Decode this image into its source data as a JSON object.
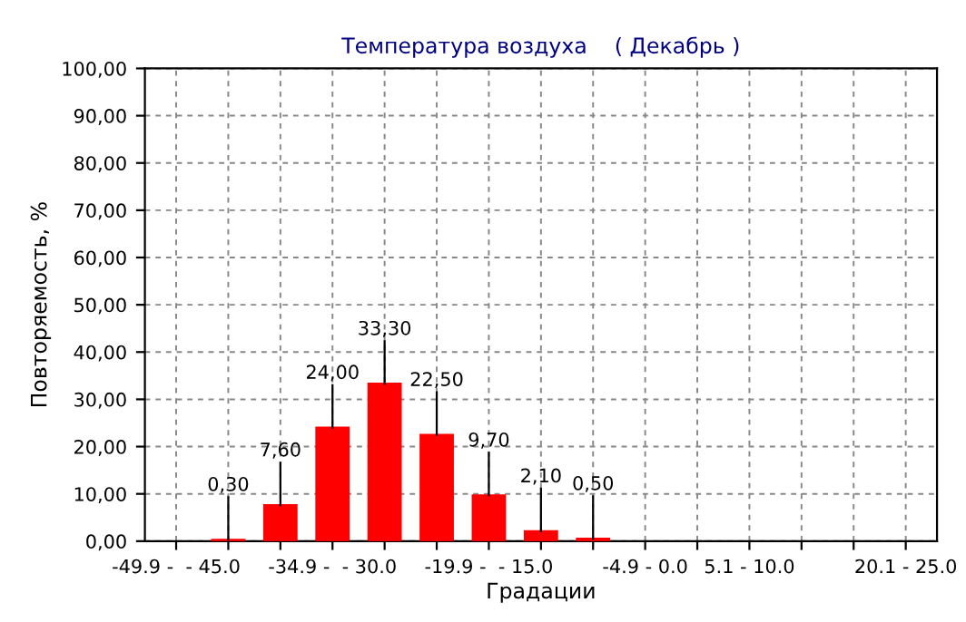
{
  "chart_data": {
    "type": "bar",
    "title": "Температура воздуха    ( Декабрь )",
    "xlabel": "Градации",
    "ylabel": "Повторяемость, %",
    "categories": [
      "-49.9 -  - 45.0",
      null,
      null,
      "-34.9 -  - 30.0",
      null,
      null,
      "-19.9 -  - 15.0",
      null,
      null,
      "-4.9 - 0.0",
      null,
      "5.1 - 10.0",
      null,
      null,
      "20.1 - 25.0"
    ],
    "values": [
      null,
      0.3,
      7.6,
      24.0,
      33.3,
      22.5,
      9.7,
      2.1,
      0.5,
      null,
      null,
      null,
      null,
      null,
      null
    ],
    "value_labels": [
      null,
      "0,30",
      "7,60",
      "24,00",
      "33,30",
      "22,50",
      "9,70",
      "2,10",
      "0,50",
      null,
      null,
      null,
      null,
      null,
      null
    ],
    "color": "#ff0000",
    "ylim": [
      0,
      100
    ],
    "yticks": [
      {
        "value": 0,
        "label": "0,00"
      },
      {
        "value": 10,
        "label": "10,00"
      },
      {
        "value": 20,
        "label": "20,00"
      },
      {
        "value": 30,
        "label": "30,00"
      },
      {
        "value": 40,
        "label": "40,00"
      },
      {
        "value": 50,
        "label": "50,00"
      },
      {
        "value": 60,
        "label": "60,00"
      },
      {
        "value": 70,
        "label": "70,00"
      },
      {
        "value": 80,
        "label": "80,00"
      },
      {
        "value": 90,
        "label": "90,00"
      },
      {
        "value": 100,
        "label": "100,00"
      }
    ],
    "grid": true
  }
}
